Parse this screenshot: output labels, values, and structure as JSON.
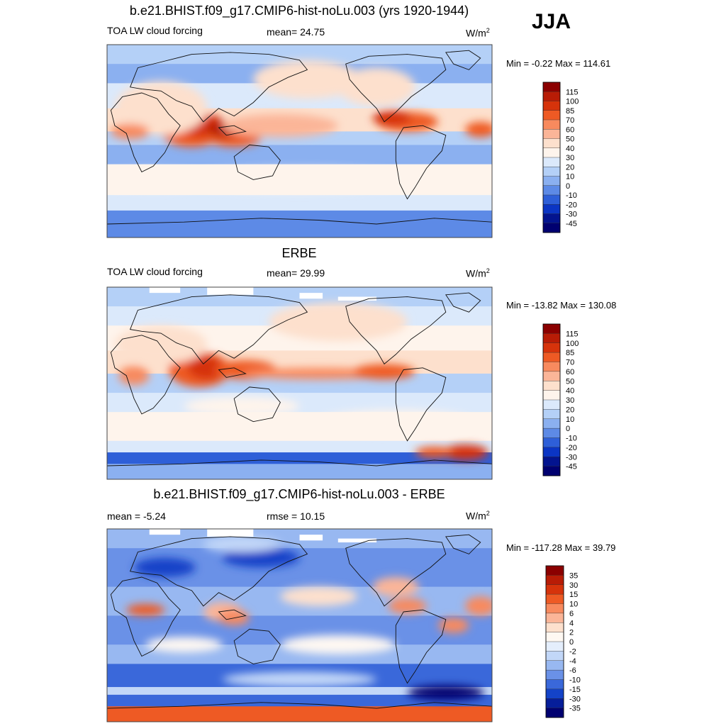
{
  "season": "JJA",
  "chart_data": [
    {
      "type": "heatmap",
      "title": "b.e21.BHIST.f09_g17.CMIP6-hist-noLu.003 (yrs 1920-1944)",
      "left_label": "TOA LW cloud forcing",
      "center_label": "mean=  24.75",
      "units_base": "W/m",
      "units_exp": "2",
      "minmax": "Min =  -0.22 Max = 114.61",
      "min": -0.22,
      "max": 114.61,
      "mean": 24.75,
      "colorbar": {
        "levels": [
          "115",
          "100",
          "85",
          "70",
          "60",
          "50",
          "40",
          "30",
          "20",
          "10",
          "0",
          "-10",
          "-20",
          "-30",
          "-45"
        ],
        "colors": [
          "#8b0000",
          "#b81c06",
          "#d6330b",
          "#ee5a24",
          "#f88a5e",
          "#fbb598",
          "#fde0cd",
          "#fef4ec",
          "#dbe9fb",
          "#b4d0f7",
          "#8bb0f0",
          "#5d8ae6",
          "#2e5fd8",
          "#0b35c4",
          "#03148f",
          "#000070"
        ]
      }
    },
    {
      "type": "heatmap",
      "title": "ERBE",
      "left_label": "TOA LW cloud forcing",
      "center_label": "mean=  29.99",
      "units_base": "W/m",
      "units_exp": "2",
      "minmax": "Min = -13.82 Max = 130.08",
      "min": -13.82,
      "max": 130.08,
      "mean": 29.99,
      "colorbar": {
        "levels": [
          "115",
          "100",
          "85",
          "70",
          "60",
          "50",
          "40",
          "30",
          "20",
          "10",
          "0",
          "-10",
          "-20",
          "-30",
          "-45"
        ],
        "colors": [
          "#8b0000",
          "#b81c06",
          "#d6330b",
          "#ee5a24",
          "#f88a5e",
          "#fbb598",
          "#fde0cd",
          "#fef4ec",
          "#dbe9fb",
          "#b4d0f7",
          "#8bb0f0",
          "#5d8ae6",
          "#2e5fd8",
          "#0b35c4",
          "#03148f",
          "#000070"
        ]
      }
    },
    {
      "type": "heatmap",
      "title": "b.e21.BHIST.f09_g17.CMIP6-hist-noLu.003 - ERBE",
      "left_label": "mean =  -5.24",
      "center_label": "rmse =  10.15",
      "units_base": "W/m",
      "units_exp": "2",
      "minmax": "Min = -117.28 Max =  39.79",
      "min": -117.28,
      "max": 39.79,
      "mean": -5.24,
      "rmse": 10.15,
      "colorbar": {
        "levels": [
          "35",
          "30",
          "15",
          "10",
          "6",
          "4",
          "2",
          "0",
          "-2",
          "-4",
          "-6",
          "-10",
          "-15",
          "-30",
          "-35"
        ],
        "colors": [
          "#8b0000",
          "#b81c06",
          "#d6330b",
          "#ee5a24",
          "#f88a5e",
          "#fbb598",
          "#fde0cd",
          "#fef8f2",
          "#e4eefc",
          "#c2d7f8",
          "#98b8f1",
          "#6a91e7",
          "#3a68da",
          "#1443c8",
          "#061e9a",
          "#000070"
        ]
      }
    }
  ]
}
